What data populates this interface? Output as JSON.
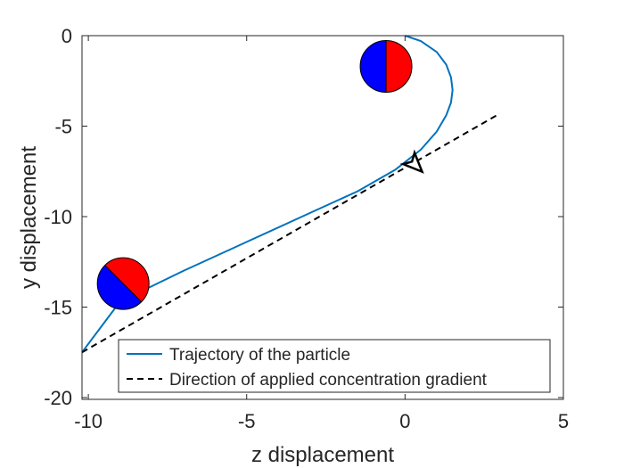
{
  "chart_data": {
    "type": "line",
    "title": "",
    "xlabel": "z displacement",
    "ylabel": "y displacement",
    "xlim": [
      -10.2,
      5
    ],
    "ylim": [
      -20.1,
      0
    ],
    "xticks": [
      -10,
      -5,
      0,
      5
    ],
    "xtick_labels": [
      "-10",
      "-5",
      "0",
      "5"
    ],
    "yticks": [
      0,
      -5,
      -10,
      -15,
      -20
    ],
    "ytick_labels": [
      "0",
      "-5",
      "-10",
      "-15",
      "-20"
    ],
    "grid": false,
    "legend_position": "bottom-right",
    "series": [
      {
        "name": "Trajectory of the particle",
        "style": "solid",
        "color": "#0072BD",
        "x": [
          0,
          0.5,
          1.0,
          1.3,
          1.45,
          1.5,
          1.45,
          1.3,
          1.0,
          0.5,
          -0.3,
          -1.5,
          -3.0,
          -5.0,
          -7.0,
          -9.0,
          -10.2
        ],
        "y": [
          0,
          -0.3,
          -0.9,
          -1.6,
          -2.3,
          -3.0,
          -3.7,
          -4.4,
          -5.3,
          -6.3,
          -7.4,
          -8.6,
          -9.8,
          -11.4,
          -13.0,
          -14.7,
          -17.5
        ]
      },
      {
        "name": "Direction of applied concentration gradient",
        "style": "dashed",
        "color": "#000000",
        "x": [
          -10.2,
          3.0
        ],
        "y": [
          -17.5,
          -4.3
        ]
      }
    ],
    "annotations": [
      {
        "type": "janus-particle",
        "x": -0.6,
        "y": -1.7,
        "angle_deg": 0,
        "colors": [
          "#0000FF",
          "#FF0000"
        ]
      },
      {
        "type": "janus-particle",
        "x": -8.9,
        "y": -13.7,
        "angle_deg": -45,
        "colors": [
          "#0000FF",
          "#FF0000"
        ]
      },
      {
        "type": "arrowhead",
        "x": 0.3,
        "y": -7.1,
        "angle_deg": 45,
        "color": "#000000"
      }
    ]
  }
}
